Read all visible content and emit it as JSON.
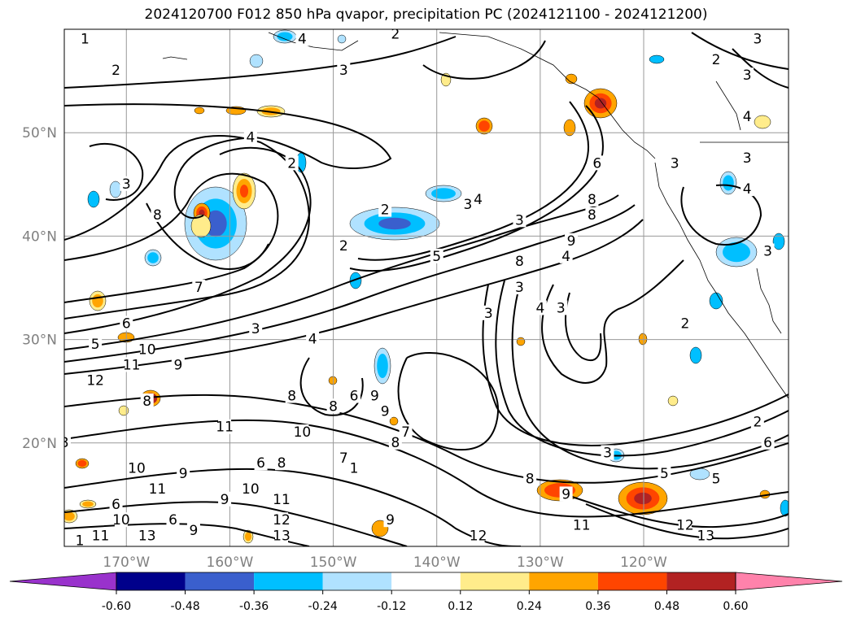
{
  "chart_data": {
    "type": "heatmap",
    "title": "2024120700 F012 850 hPa qvapor, precipitation PC (2024121100 - 2024121200)",
    "x_ticks": [
      {
        "lon": -170,
        "label": "170°W"
      },
      {
        "lon": -160,
        "label": "160°W"
      },
      {
        "lon": -150,
        "label": "150°W"
      },
      {
        "lon": -140,
        "label": "140°W"
      },
      {
        "lon": -130,
        "label": "130°W"
      },
      {
        "lon": -120,
        "label": "120°W"
      }
    ],
    "y_ticks": [
      {
        "lat": 20,
        "label": "20°N"
      },
      {
        "lat": 30,
        "label": "30°N"
      },
      {
        "lat": 40,
        "label": "40°N"
      },
      {
        "lat": 50,
        "label": "50°N"
      }
    ],
    "xlim": [
      -176,
      -106
    ],
    "ylim": [
      10,
      60
    ],
    "grid": true,
    "colorbar": {
      "orientation": "horizontal",
      "extend": "both",
      "ticks": [
        "-0.60",
        "-0.48",
        "-0.36",
        "-0.24",
        "-0.12",
        "0.12",
        "0.24",
        "0.36",
        "0.48",
        "0.60"
      ],
      "bounds": [
        -0.6,
        -0.48,
        -0.36,
        -0.24,
        -0.12,
        0.12,
        0.24,
        0.36,
        0.48,
        0.6
      ],
      "colors": [
        "#9932cc",
        "#00008b",
        "#3a5fcd",
        "#00bfff",
        "#b0e2ff",
        "#ffffff",
        "#ffec8b",
        "#ffa500",
        "#ff4500",
        "#b22222",
        "#ff82ab"
      ]
    },
    "contour_labels": [
      {
        "text": "1",
        "lon": -174,
        "lat": 59
      },
      {
        "text": "2",
        "lon": -171,
        "lat": 56
      },
      {
        "text": "4",
        "lon": -153,
        "lat": 59
      },
      {
        "text": "3",
        "lon": -149,
        "lat": 56
      },
      {
        "text": "2",
        "lon": -144,
        "lat": 59.5
      },
      {
        "text": "3",
        "lon": -109,
        "lat": 59
      },
      {
        "text": "2",
        "lon": -113,
        "lat": 57
      },
      {
        "text": "3",
        "lon": -110,
        "lat": 55.5
      },
      {
        "text": "4",
        "lon": -110,
        "lat": 51.5
      },
      {
        "text": "4",
        "lon": -158,
        "lat": 49.5
      },
      {
        "text": "2",
        "lon": -154,
        "lat": 47
      },
      {
        "text": "3",
        "lon": -170,
        "lat": 45
      },
      {
        "text": "8",
        "lon": -167,
        "lat": 42
      },
      {
        "text": "4",
        "lon": -136,
        "lat": 43.5
      },
      {
        "text": "3",
        "lon": -137,
        "lat": 43
      },
      {
        "text": "2",
        "lon": -145,
        "lat": 42.5
      },
      {
        "text": "3",
        "lon": -132,
        "lat": 41.5
      },
      {
        "text": "3",
        "lon": -117,
        "lat": 47
      },
      {
        "text": "3",
        "lon": -110,
        "lat": 47.5
      },
      {
        "text": "4",
        "lon": -110,
        "lat": 44.5
      },
      {
        "text": "2",
        "lon": -149,
        "lat": 39
      },
      {
        "text": "5",
        "lon": -140,
        "lat": 38
      },
      {
        "text": "8",
        "lon": -132,
        "lat": 37.5
      },
      {
        "text": "8",
        "lon": -125,
        "lat": 42
      },
      {
        "text": "9",
        "lon": -127,
        "lat": 39.5
      },
      {
        "text": "4",
        "lon": -127.5,
        "lat": 38
      },
      {
        "text": "8",
        "lon": -125,
        "lat": 43.5
      },
      {
        "text": "6",
        "lon": -124.5,
        "lat": 47
      },
      {
        "text": "3",
        "lon": -108,
        "lat": 38.5
      },
      {
        "text": "3",
        "lon": -132,
        "lat": 35
      },
      {
        "text": "7",
        "lon": -163,
        "lat": 35
      },
      {
        "text": "3",
        "lon": -135,
        "lat": 32.5
      },
      {
        "text": "4",
        "lon": -130,
        "lat": 33
      },
      {
        "text": "3",
        "lon": -128,
        "lat": 33
      },
      {
        "text": "2",
        "lon": -116,
        "lat": 31.5
      },
      {
        "text": "6",
        "lon": -170,
        "lat": 31.5
      },
      {
        "text": "3",
        "lon": -157.5,
        "lat": 31
      },
      {
        "text": "4",
        "lon": -152,
        "lat": 30
      },
      {
        "text": "5",
        "lon": -173,
        "lat": 29.5
      },
      {
        "text": "10",
        "lon": -168,
        "lat": 29
      },
      {
        "text": "11",
        "lon": -169.5,
        "lat": 27.5
      },
      {
        "text": "9",
        "lon": -165,
        "lat": 27.5
      },
      {
        "text": "12",
        "lon": -173,
        "lat": 26
      },
      {
        "text": "6",
        "lon": -148,
        "lat": 24.5
      },
      {
        "text": "8",
        "lon": -150,
        "lat": 23.5
      },
      {
        "text": "9",
        "lon": -146,
        "lat": 24.5
      },
      {
        "text": "8",
        "lon": -154,
        "lat": 24.5
      },
      {
        "text": "8",
        "lon": -168,
        "lat": 24
      },
      {
        "text": "9",
        "lon": -145,
        "lat": 23
      },
      {
        "text": "10",
        "lon": -153,
        "lat": 21
      },
      {
        "text": "11",
        "lon": -160.5,
        "lat": 21.5
      },
      {
        "text": "7",
        "lon": -143,
        "lat": 21
      },
      {
        "text": "8",
        "lon": -144,
        "lat": 20
      },
      {
        "text": "8",
        "lon": -176,
        "lat": 20
      },
      {
        "text": "2",
        "lon": -109,
        "lat": 22
      },
      {
        "text": "6",
        "lon": -108,
        "lat": 20
      },
      {
        "text": "7",
        "lon": -149,
        "lat": 18.5
      },
      {
        "text": "8",
        "lon": -155,
        "lat": 18
      },
      {
        "text": "6",
        "lon": -157,
        "lat": 18
      },
      {
        "text": "1",
        "lon": -148,
        "lat": 17.5
      },
      {
        "text": "3",
        "lon": -123.5,
        "lat": 19
      },
      {
        "text": "10",
        "lon": -169,
        "lat": 17.5
      },
      {
        "text": "9",
        "lon": -164.5,
        "lat": 17
      },
      {
        "text": "11",
        "lon": -167,
        "lat": 15.5
      },
      {
        "text": "8",
        "lon": -131,
        "lat": 16.5
      },
      {
        "text": "9",
        "lon": -127.5,
        "lat": 15
      },
      {
        "text": "10",
        "lon": -158,
        "lat": 15.5
      },
      {
        "text": "11",
        "lon": -155,
        "lat": 14.5
      },
      {
        "text": "5",
        "lon": -113,
        "lat": 16.5
      },
      {
        "text": "5",
        "lon": -118,
        "lat": 17
      },
      {
        "text": "6",
        "lon": -171,
        "lat": 14
      },
      {
        "text": "9",
        "lon": -160.5,
        "lat": 14.5
      },
      {
        "text": "12",
        "lon": -155,
        "lat": 12.5
      },
      {
        "text": "6",
        "lon": -165.5,
        "lat": 12.5
      },
      {
        "text": "10",
        "lon": -170.5,
        "lat": 12.5
      },
      {
        "text": "11",
        "lon": -172.5,
        "lat": 11
      },
      {
        "text": "13",
        "lon": -168,
        "lat": 11
      },
      {
        "text": "9",
        "lon": -163.5,
        "lat": 11.5
      },
      {
        "text": "13",
        "lon": -155,
        "lat": 11
      },
      {
        "text": "9",
        "lon": -144.5,
        "lat": 12.5
      },
      {
        "text": "11",
        "lon": -126,
        "lat": 12
      },
      {
        "text": "12",
        "lon": -136,
        "lat": 11
      },
      {
        "text": "12",
        "lon": -116,
        "lat": 12
      },
      {
        "text": "13",
        "lon": -114,
        "lat": 11
      },
      {
        "text": "1",
        "lon": -174.5,
        "lat": 10.5
      }
    ]
  }
}
